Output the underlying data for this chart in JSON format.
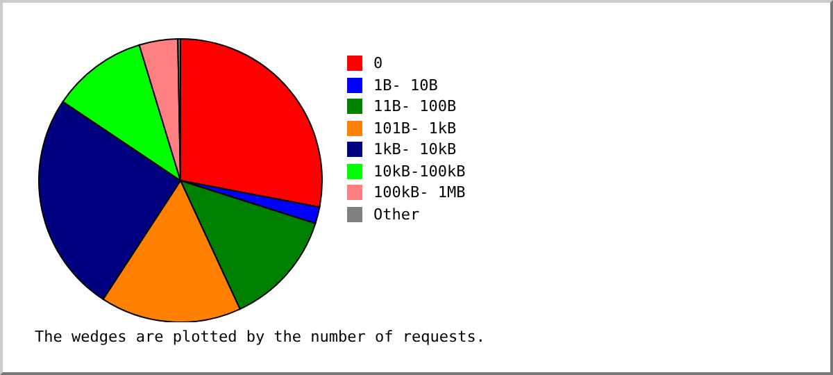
{
  "chart_data": {
    "type": "pie",
    "categories": [
      "0",
      "1B- 10B",
      "11B- 100B",
      "101B- 1kB",
      "1kB- 10kB",
      "10kB-100kB",
      "100kB- 1MB",
      "Other"
    ],
    "values": [
      28.0,
      1.9,
      13.2,
      16.1,
      25.2,
      10.9,
      4.4,
      0.3
    ],
    "colors": [
      "#ff0000",
      "#0000ff",
      "#008000",
      "#ff8000",
      "#000080",
      "#00ff00",
      "#ff8080",
      "#808080"
    ],
    "legend": "right",
    "annotations": [
      "The wedges are plotted by the number of requests."
    ]
  }
}
